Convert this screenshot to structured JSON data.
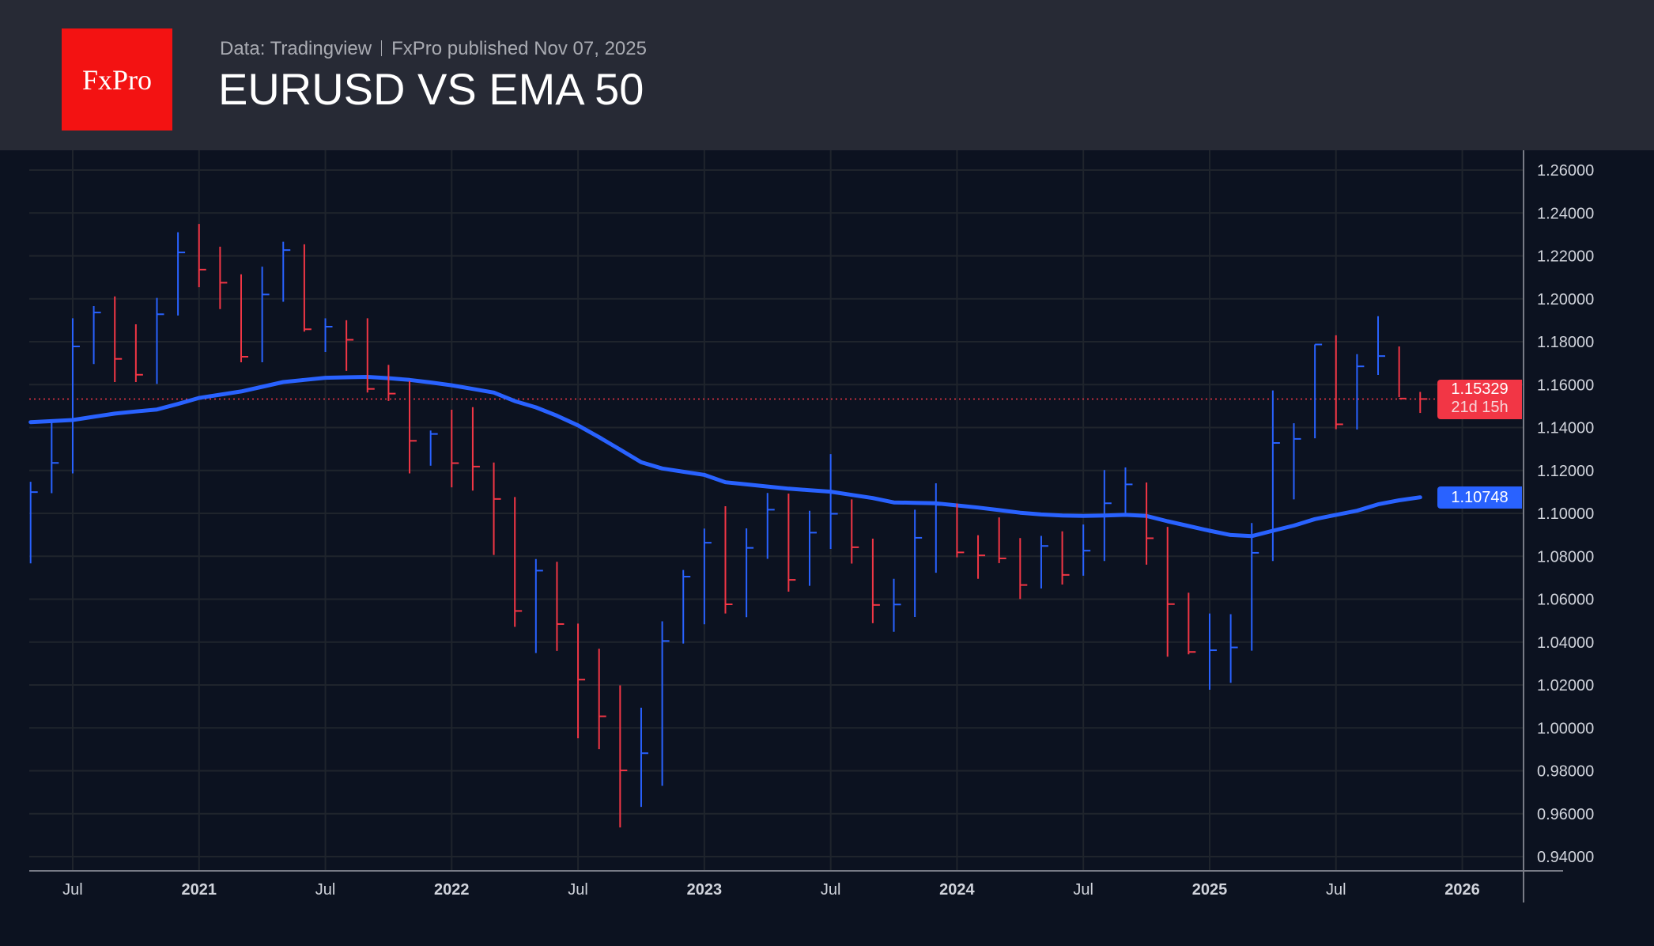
{
  "header": {
    "logo_text": "FxPro",
    "source": "Data: Tradingview",
    "published": "FxPro published Nov 07, 2025",
    "title": "EURUSD VS EMA 50"
  },
  "colors": {
    "up": "#2962ff",
    "down": "#f23645",
    "ema": "#2962ff",
    "background": "#0c1220",
    "header": "#272a35"
  },
  "chart_data": {
    "type": "ohlc-bar",
    "title": "EURUSD VS EMA 50",
    "timeframe": "monthly",
    "ylim": [
      0.94,
      1.26
    ],
    "y_ticks": [
      "1.26000",
      "1.24000",
      "1.22000",
      "1.20000",
      "1.18000",
      "1.16000",
      "1.14000",
      "1.12000",
      "1.10000",
      "1.08000",
      "1.06000",
      "1.04000",
      "1.02000",
      "1.00000",
      "0.98000",
      "0.96000",
      "0.94000"
    ],
    "x_ticks": [
      {
        "label": "Jul",
        "month": "2020-07",
        "bold": false
      },
      {
        "label": "2021",
        "month": "2021-01",
        "bold": true
      },
      {
        "label": "Jul",
        "month": "2021-07",
        "bold": false
      },
      {
        "label": "2022",
        "month": "2022-01",
        "bold": true
      },
      {
        "label": "Jul",
        "month": "2022-07",
        "bold": false
      },
      {
        "label": "2023",
        "month": "2023-01",
        "bold": true
      },
      {
        "label": "Jul",
        "month": "2023-07",
        "bold": false
      },
      {
        "label": "2024",
        "month": "2024-01",
        "bold": true
      },
      {
        "label": "Jul",
        "month": "2024-07",
        "bold": false
      },
      {
        "label": "2025",
        "month": "2025-01",
        "bold": true
      },
      {
        "label": "Jul",
        "month": "2025-07",
        "bold": false
      },
      {
        "label": "2026",
        "month": "2026-01",
        "bold": true
      }
    ],
    "grid": true,
    "months": [
      "2020-05",
      "2020-06",
      "2020-07",
      "2020-08",
      "2020-09",
      "2020-10",
      "2020-11",
      "2020-12",
      "2021-01",
      "2021-02",
      "2021-03",
      "2021-04",
      "2021-05",
      "2021-06",
      "2021-07",
      "2021-08",
      "2021-09",
      "2021-10",
      "2021-11",
      "2021-12",
      "2022-01",
      "2022-02",
      "2022-03",
      "2022-04",
      "2022-05",
      "2022-06",
      "2022-07",
      "2022-08",
      "2022-09",
      "2022-10",
      "2022-11",
      "2022-12",
      "2023-01",
      "2023-02",
      "2023-03",
      "2023-04",
      "2023-05",
      "2023-06",
      "2023-07",
      "2023-08",
      "2023-09",
      "2023-10",
      "2023-11",
      "2023-12",
      "2024-01",
      "2024-02",
      "2024-03",
      "2024-04",
      "2024-05",
      "2024-06",
      "2024-07",
      "2024-08",
      "2024-09",
      "2024-10",
      "2024-11",
      "2024-12",
      "2025-01",
      "2025-02",
      "2025-03",
      "2025-04",
      "2025-05",
      "2025-06",
      "2025-07",
      "2025-08",
      "2025-09",
      "2025-10",
      "2025-11"
    ],
    "high": [
      1.1147,
      1.1422,
      1.1909,
      1.1966,
      1.2011,
      1.1881,
      1.2004,
      1.231,
      1.2349,
      1.2243,
      1.2114,
      1.215,
      1.2266,
      1.2254,
      1.1909,
      1.19,
      1.1909,
      1.1692,
      1.1617,
      1.1386,
      1.1483,
      1.1495,
      1.1237,
      1.1076,
      1.0787,
      1.0774,
      1.0486,
      1.0369,
      1.0198,
      1.0094,
      1.0497,
      1.0736,
      1.0929,
      1.1033,
      1.093,
      1.1095,
      1.1092,
      1.1012,
      1.1276,
      1.1065,
      1.0882,
      1.0695,
      1.1017,
      1.114,
      1.1046,
      1.0898,
      1.0981,
      1.0885,
      1.0895,
      1.0916,
      1.0948,
      1.1202,
      1.1214,
      1.1144,
      1.0937,
      1.063,
      1.0533,
      1.053,
      1.0955,
      1.1573,
      1.142,
      1.1787,
      1.183,
      1.1742,
      1.1919,
      1.1778,
      1.1566
    ],
    "low": [
      1.0767,
      1.1094,
      1.1186,
      1.1696,
      1.1612,
      1.1612,
      1.1603,
      1.1922,
      1.2054,
      1.1952,
      1.1704,
      1.1704,
      1.1986,
      1.1847,
      1.1752,
      1.1664,
      1.1563,
      1.1524,
      1.1186,
      1.1222,
      1.1121,
      1.1106,
      1.0806,
      1.0471,
      1.0349,
      1.0359,
      0.9952,
      0.9901,
      0.9536,
      0.9632,
      0.973,
      1.0393,
      1.0483,
      1.0533,
      1.0516,
      1.0788,
      1.0635,
      1.0662,
      1.0834,
      1.0766,
      1.0488,
      1.0448,
      1.0517,
      1.0723,
      1.0795,
      1.0695,
      1.0768,
      1.0601,
      1.065,
      1.0668,
      1.0709,
      1.0778,
      1.0998,
      1.0761,
      1.0332,
      1.0343,
      1.0178,
      1.021,
      1.036,
      1.0778,
      1.1065,
      1.135,
      1.1392,
      1.1391,
      1.1645,
      1.1542,
      1.1468
    ],
    "close": [
      1.1099,
      1.1235,
      1.1778,
      1.1936,
      1.172,
      1.1646,
      1.1928,
      1.2216,
      1.2136,
      1.2075,
      1.173,
      1.202,
      1.2227,
      1.1858,
      1.187,
      1.1809,
      1.158,
      1.1558,
      1.1338,
      1.137,
      1.1234,
      1.1218,
      1.1067,
      1.0545,
      1.0733,
      1.0484,
      1.0225,
      1.0054,
      0.9802,
      0.9882,
      1.0405,
      1.0705,
      1.0863,
      1.0576,
      1.0839,
      1.1017,
      1.069,
      1.091,
      1.0998,
      1.0842,
      1.0573,
      1.0575,
      1.0886,
      1.1039,
      1.0818,
      1.0804,
      1.079,
      1.0666,
      1.0848,
      1.0713,
      1.0826,
      1.1047,
      1.1135,
      1.0884,
      1.0577,
      1.0354,
      1.0362,
      1.0375,
      1.0816,
      1.1328,
      1.1347,
      1.1787,
      1.1415,
      1.1685,
      1.1733,
      1.1535,
      1.1533
    ],
    "direction": [
      "up",
      "up",
      "up",
      "up",
      "down",
      "down",
      "up",
      "up",
      "down",
      "down",
      "down",
      "up",
      "up",
      "down",
      "up",
      "down",
      "down",
      "down",
      "down",
      "up",
      "down",
      "down",
      "down",
      "down",
      "up",
      "down",
      "down",
      "down",
      "down",
      "up",
      "up",
      "up",
      "up",
      "down",
      "up",
      "up",
      "down",
      "up",
      "up",
      "down",
      "down",
      "up",
      "up",
      "up",
      "down",
      "down",
      "down",
      "down",
      "up",
      "down",
      "up",
      "up",
      "up",
      "down",
      "down",
      "down",
      "up",
      "up",
      "up",
      "up",
      "up",
      "up",
      "down",
      "up",
      "up",
      "down",
      "down"
    ],
    "series": [
      {
        "name": "EMA 50",
        "values": [
          1.1425,
          1.143,
          1.1435,
          1.145,
          1.1465,
          1.1475,
          1.1484,
          1.151,
          1.1538,
          1.1553,
          1.1568,
          1.159,
          1.1612,
          1.1622,
          1.1632,
          1.1634,
          1.1636,
          1.163,
          1.1622,
          1.161,
          1.1597,
          1.158,
          1.1563,
          1.1523,
          1.1494,
          1.1455,
          1.141,
          1.1355,
          1.1297,
          1.1238,
          1.1209,
          1.1194,
          1.1179,
          1.1145,
          1.1135,
          1.1125,
          1.1115,
          1.1108,
          1.1101,
          1.1086,
          1.1071,
          1.1051,
          1.1049,
          1.1047,
          1.1037,
          1.1027,
          1.1015,
          1.1003,
          1.0995,
          1.099,
          1.0988,
          1.099,
          1.0993,
          1.0988,
          1.0963,
          1.0941,
          1.0919,
          1.0899,
          1.0894,
          1.0919,
          1.0943,
          1.0973,
          1.0993,
          1.1012,
          1.1042,
          1.1061,
          1.1075
        ]
      }
    ],
    "last_price": {
      "value": "1.15329",
      "countdown": "21d 15h"
    },
    "ema_last": {
      "value": "1.10748"
    }
  }
}
